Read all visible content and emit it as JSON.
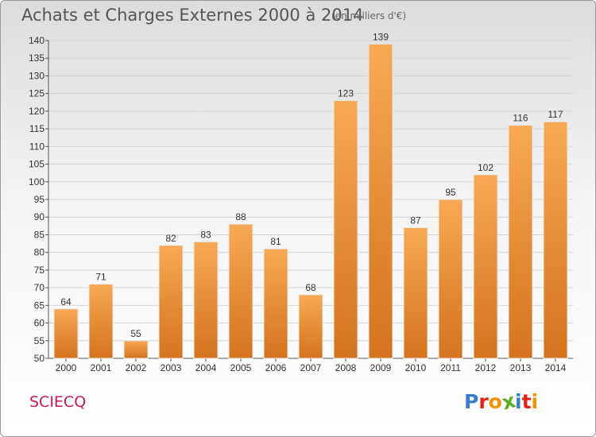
{
  "header": {
    "title": "Achats et Charges Externes 2000 à 2014",
    "unit": "(en milliers d'€)"
  },
  "footer": {
    "commune": "SCIECQ",
    "brand": "Proxiti",
    "brand_colors": [
      "#3a7dc9",
      "#e2231a",
      "#f39200",
      "#5cab1e",
      "#3a7dc9",
      "#e2231a",
      "#f39200"
    ]
  },
  "colors": {
    "bar_light": "#f7a955",
    "bar_dark": "#d4731e",
    "commune": "#c8195a"
  },
  "chart_data": {
    "type": "bar",
    "title": "Achats et Charges Externes 2000 à 2014",
    "subtitle": "(en milliers d'€)",
    "xlabel": "",
    "ylabel": "",
    "categories": [
      "2000",
      "2001",
      "2002",
      "2003",
      "2004",
      "2005",
      "2006",
      "2007",
      "2008",
      "2009",
      "2010",
      "2011",
      "2012",
      "2013",
      "2014"
    ],
    "values": [
      64,
      71,
      55,
      82,
      83,
      88,
      81,
      68,
      123,
      139,
      87,
      95,
      102,
      116,
      117
    ],
    "ylim": [
      50,
      140
    ],
    "yticks": [
      50,
      55,
      60,
      65,
      70,
      75,
      80,
      85,
      90,
      95,
      100,
      105,
      110,
      115,
      120,
      125,
      130,
      135,
      140
    ],
    "grid": true,
    "data_labels": true
  }
}
